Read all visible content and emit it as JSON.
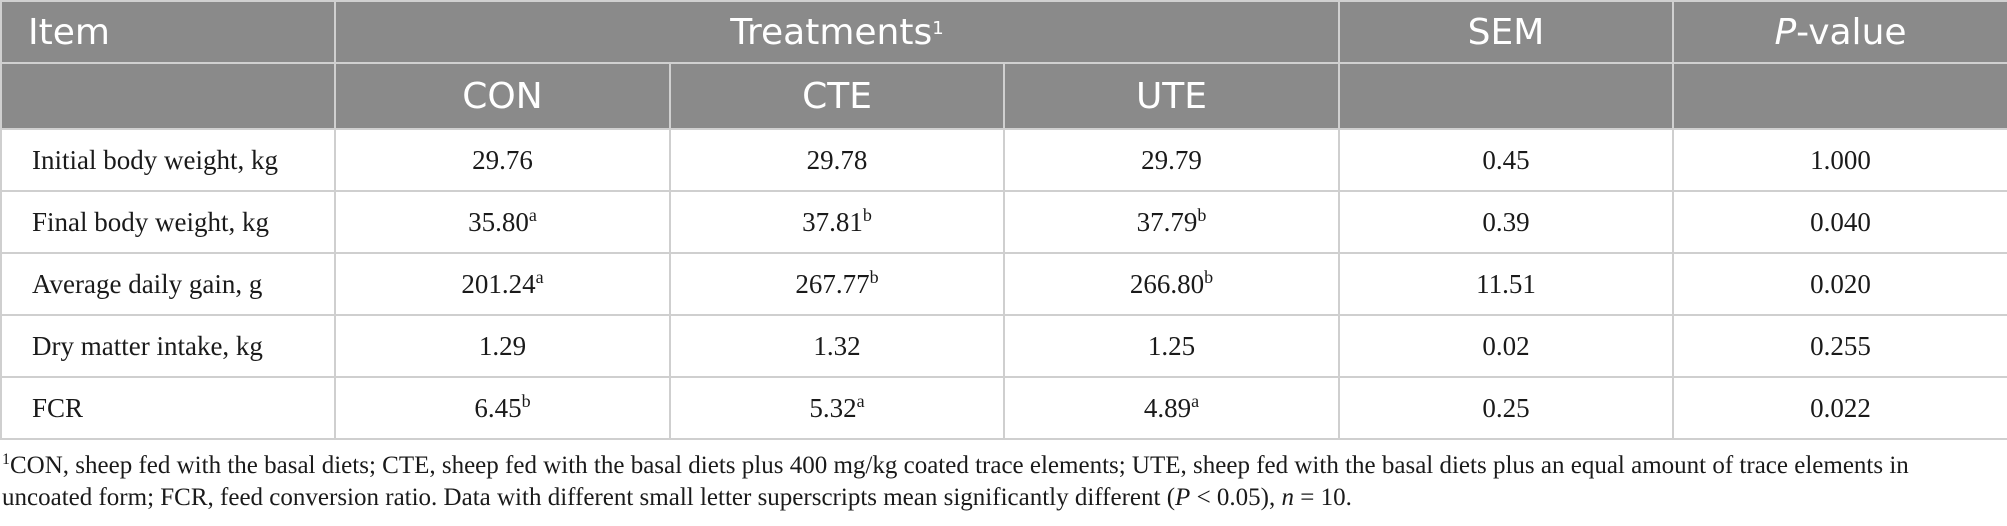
{
  "header": {
    "item": "Item",
    "treatments": "Treatments",
    "treatments_sup": "1",
    "sem": "SEM",
    "p_italic": "P",
    "p_rest": "-value",
    "groups": [
      "CON",
      "CTE",
      "UTE"
    ]
  },
  "rows": [
    {
      "item": "Initial body weight, kg",
      "con": "29.76",
      "con_sup": "",
      "cte": "29.78",
      "cte_sup": "",
      "ute": "29.79",
      "ute_sup": "",
      "sem": "0.45",
      "p": "1.000"
    },
    {
      "item": "Final body weight, kg",
      "con": "35.80",
      "con_sup": "a",
      "cte": "37.81",
      "cte_sup": "b",
      "ute": "37.79",
      "ute_sup": "b",
      "sem": "0.39",
      "p": "0.040"
    },
    {
      "item": "Average daily gain, g",
      "con": "201.24",
      "con_sup": "a",
      "cte": "267.77",
      "cte_sup": "b",
      "ute": "266.80",
      "ute_sup": "b",
      "sem": "11.51",
      "p": "0.020"
    },
    {
      "item": "Dry matter intake, kg",
      "con": "1.29",
      "con_sup": "",
      "cte": "1.32",
      "cte_sup": "",
      "ute": "1.25",
      "ute_sup": "",
      "sem": "0.02",
      "p": "0.255"
    },
    {
      "item": "FCR",
      "con": "6.45",
      "con_sup": "b",
      "cte": "5.32",
      "cte_sup": "a",
      "ute": "4.89",
      "ute_sup": "a",
      "sem": "0.25",
      "p": "0.022"
    }
  ],
  "footnote": {
    "sup": "1",
    "text1": "CON, sheep fed with the basal diets; CTE, sheep fed with the basal diets plus 400 mg/kg coated trace elements; UTE, sheep fed with the basal diets plus an equal amount of trace elements in uncoated form; FCR, feed conversion ratio. Data with different small letter superscripts mean significantly different (",
    "p_italic": "P",
    "text2": " < 0.05), ",
    "n_italic": "n",
    "text3": " = 10."
  }
}
